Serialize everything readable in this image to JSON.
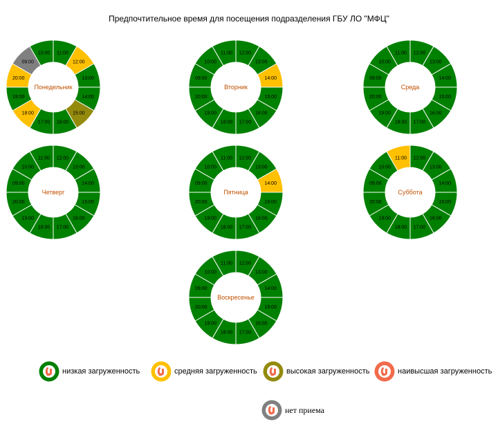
{
  "title": "Предпочтительное время для посещения подразделения ГБУ ЛО \"МФЦ\"",
  "colors": {
    "low": "#008000",
    "medium": "#FFC000",
    "high": "#948A0C",
    "highest": "#F26B4A",
    "closed": "#808080",
    "day_label": "#C05000"
  },
  "chart_data": [
    {
      "type": "pie",
      "day": "Понедельник",
      "slots": [
        {
          "time": "11:00",
          "load": "low"
        },
        {
          "time": "12:00",
          "load": "medium"
        },
        {
          "time": "13:00",
          "load": "low"
        },
        {
          "time": "14:00",
          "load": "low"
        },
        {
          "time": "15:00",
          "load": "high"
        },
        {
          "time": "16:00",
          "load": "low"
        },
        {
          "time": "17:00",
          "load": "low"
        },
        {
          "time": "18:00",
          "load": "medium"
        },
        {
          "time": "19:00",
          "load": "low"
        },
        {
          "time": "20:00",
          "load": "medium"
        },
        {
          "time": "09:00",
          "load": "closed"
        },
        {
          "time": "10:00",
          "load": "low"
        }
      ]
    },
    {
      "type": "pie",
      "day": "Вторник",
      "slots": [
        {
          "time": "12:00",
          "load": "low"
        },
        {
          "time": "13:00",
          "load": "low"
        },
        {
          "time": "14:00",
          "load": "medium"
        },
        {
          "time": "15:00",
          "load": "low"
        },
        {
          "time": "16:00",
          "load": "low"
        },
        {
          "time": "17:00",
          "load": "low"
        },
        {
          "time": "18:00",
          "load": "low"
        },
        {
          "time": "19:00",
          "load": "low"
        },
        {
          "time": "20:00",
          "load": "low"
        },
        {
          "time": "09:00",
          "load": "low"
        },
        {
          "time": "10:00",
          "load": "low"
        },
        {
          "time": "11:00",
          "load": "low"
        }
      ]
    },
    {
      "type": "pie",
      "day": "Среда",
      "slots": [
        {
          "time": "12:00",
          "load": "low"
        },
        {
          "time": "13:00",
          "load": "low"
        },
        {
          "time": "14:00",
          "load": "low"
        },
        {
          "time": "15:00",
          "load": "low"
        },
        {
          "time": "16:00",
          "load": "low"
        },
        {
          "time": "17:00",
          "load": "low"
        },
        {
          "time": "18:00",
          "load": "low"
        },
        {
          "time": "19:00",
          "load": "low"
        },
        {
          "time": "20:00",
          "load": "low"
        },
        {
          "time": "09:00",
          "load": "low"
        },
        {
          "time": "10:00",
          "load": "low"
        },
        {
          "time": "11:00",
          "load": "low"
        }
      ]
    },
    {
      "type": "pie",
      "day": "Четверг",
      "slots": [
        {
          "time": "12:00",
          "load": "low"
        },
        {
          "time": "13:00",
          "load": "low"
        },
        {
          "time": "14:00",
          "load": "low"
        },
        {
          "time": "15:00",
          "load": "low"
        },
        {
          "time": "16:00",
          "load": "low"
        },
        {
          "time": "17:00",
          "load": "low"
        },
        {
          "time": "18:00",
          "load": "low"
        },
        {
          "time": "19:00",
          "load": "low"
        },
        {
          "time": "20:00",
          "load": "low"
        },
        {
          "time": "09:00",
          "load": "low"
        },
        {
          "time": "10:00",
          "load": "low"
        },
        {
          "time": "11:00",
          "load": "low"
        }
      ]
    },
    {
      "type": "pie",
      "day": "Пятница",
      "slots": [
        {
          "time": "12:00",
          "load": "low"
        },
        {
          "time": "13:00",
          "load": "low"
        },
        {
          "time": "14:00",
          "load": "medium"
        },
        {
          "time": "15:00",
          "load": "low"
        },
        {
          "time": "16:00",
          "load": "low"
        },
        {
          "time": "17:00",
          "load": "low"
        },
        {
          "time": "18:00",
          "load": "low"
        },
        {
          "time": "19:00",
          "load": "low"
        },
        {
          "time": "20:00",
          "load": "low"
        },
        {
          "time": "09:00",
          "load": "low"
        },
        {
          "time": "10:00",
          "load": "low"
        },
        {
          "time": "11:00",
          "load": "low"
        }
      ]
    },
    {
      "type": "pie",
      "day": "Суббота",
      "slots": [
        {
          "time": "12:00",
          "load": "low"
        },
        {
          "time": "13:00",
          "load": "low"
        },
        {
          "time": "14:00",
          "load": "low"
        },
        {
          "time": "15:00",
          "load": "low"
        },
        {
          "time": "16:00",
          "load": "low"
        },
        {
          "time": "17:00",
          "load": "low"
        },
        {
          "time": "18:00",
          "load": "low"
        },
        {
          "time": "19:00",
          "load": "low"
        },
        {
          "time": "20:00",
          "load": "low"
        },
        {
          "time": "09:00",
          "load": "low"
        },
        {
          "time": "10:00",
          "load": "low"
        },
        {
          "time": "11:00",
          "load": "medium"
        }
      ]
    },
    {
      "type": "pie",
      "day": "Воскресенье",
      "slots": [
        {
          "time": "12:00",
          "load": "low"
        },
        {
          "time": "13:00",
          "load": "low"
        },
        {
          "time": "14:00",
          "load": "low"
        },
        {
          "time": "15:00",
          "load": "low"
        },
        {
          "time": "16:00",
          "load": "low"
        },
        {
          "time": "17:00",
          "load": "low"
        },
        {
          "time": "18:00",
          "load": "low"
        },
        {
          "time": "19:00",
          "load": "low"
        },
        {
          "time": "20:00",
          "load": "low"
        },
        {
          "time": "09:00",
          "load": "low"
        },
        {
          "time": "10:00",
          "load": "low"
        },
        {
          "time": "11:00",
          "load": "low"
        }
      ]
    }
  ],
  "legend": [
    {
      "key": "low",
      "label": "низкая загруженность"
    },
    {
      "key": "medium",
      "label": "средняя загруженность"
    },
    {
      "key": "high",
      "label": "высокая загруженность"
    },
    {
      "key": "highest",
      "label": "наивысшая загруженность"
    },
    {
      "key": "closed",
      "label": "нет приема"
    }
  ]
}
